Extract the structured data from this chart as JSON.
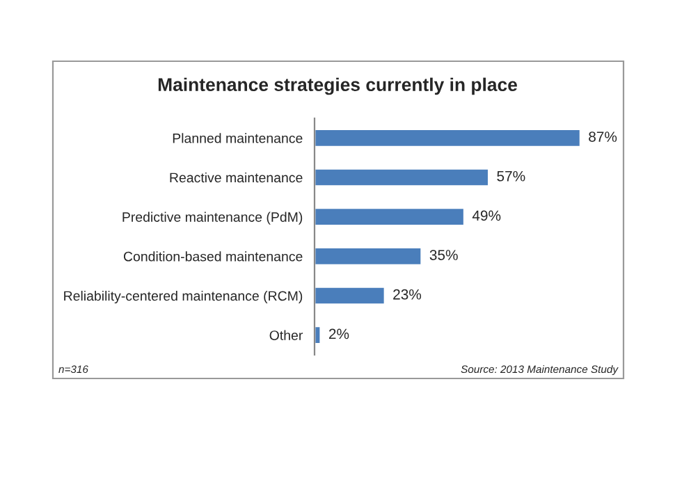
{
  "chart_data": {
    "type": "bar",
    "orientation": "horizontal",
    "title": "Maintenance strategies currently in place",
    "categories": [
      "Planned maintenance",
      "Reactive maintenance",
      "Predictive maintenance (PdM)",
      "Condition-based maintenance",
      "Reliability-centered maintenance (RCM)",
      "Other"
    ],
    "values": [
      87,
      57,
      49,
      35,
      23,
      2
    ],
    "value_labels": [
      "87%",
      "57%",
      "49%",
      "35%",
      "23%",
      "2%"
    ],
    "color": "#4a7ebb",
    "grid": false,
    "legend": false,
    "annotations": [
      "n=316",
      "Source: 2013 Maintenance Study"
    ]
  }
}
